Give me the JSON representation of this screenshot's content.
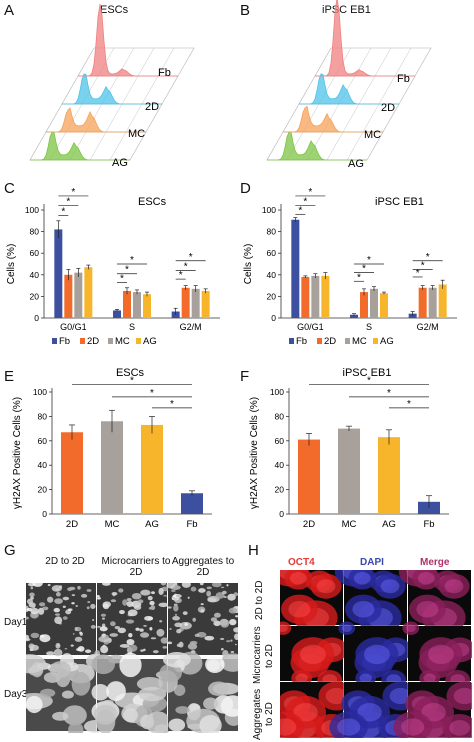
{
  "panels": {
    "A": {
      "letter": "A",
      "title": "ESCs",
      "labels": [
        "Fb",
        "2D",
        "MC",
        "AG"
      ]
    },
    "B": {
      "letter": "B",
      "title": "iPSC EB1",
      "labels": [
        "Fb",
        "2D",
        "MC",
        "AG"
      ]
    },
    "C": {
      "letter": "C",
      "title": "ESCs"
    },
    "D": {
      "letter": "D",
      "title": "iPSC EB1"
    },
    "E": {
      "letter": "E",
      "title": "ESCs"
    },
    "F": {
      "letter": "F",
      "title": "iPSC EB1"
    },
    "G": {
      "letter": "G",
      "cols": [
        "2D to 2D",
        "Microcarriers to 2D",
        "Aggregates to 2D"
      ],
      "rows": [
        "Day1",
        "Day3"
      ]
    },
    "H": {
      "letter": "H",
      "cols": [
        "OCT4",
        "DAPI",
        "Merge"
      ],
      "rows": [
        "2D to 2D",
        "Microcarriers to 2D",
        "Aggregates to 2D"
      ]
    }
  },
  "colors": {
    "Fb": "#3d4f9f",
    "2D": "#f26b2a",
    "MC": "#a8a09a",
    "AG": "#f7b52c",
    "hist_Fb": "#f08080",
    "hist_2D": "#4fc3e8",
    "hist_MC": "#f5a25a",
    "hist_AG": "#7cc444"
  },
  "sig": "*",
  "chart_data": [
    {
      "panel": "C",
      "type": "bar",
      "title": "ESCs",
      "ylabel": "Cells (%)",
      "ylim": [
        0,
        100
      ],
      "yticks": [
        0,
        20,
        40,
        60,
        80,
        100
      ],
      "categories": [
        "G0/G1",
        "S",
        "G2/M"
      ],
      "series": [
        {
          "name": "Fb",
          "values": [
            82,
            7,
            6
          ],
          "errors": [
            8,
            1,
            3
          ]
        },
        {
          "name": "2D",
          "values": [
            40,
            25,
            28
          ],
          "errors": [
            5,
            3,
            2
          ]
        },
        {
          "name": "MC",
          "values": [
            42,
            24,
            27
          ],
          "errors": [
            4,
            2,
            3
          ]
        },
        {
          "name": "AG",
          "values": [
            47,
            22,
            25
          ],
          "errors": [
            2,
            2,
            2
          ]
        }
      ],
      "legend": [
        "Fb",
        "2D",
        "MC",
        "AG"
      ]
    },
    {
      "panel": "D",
      "type": "bar",
      "title": "iPSC EB1",
      "ylabel": "Cells (%)",
      "ylim": [
        0,
        100
      ],
      "yticks": [
        0,
        20,
        40,
        60,
        80,
        100
      ],
      "categories": [
        "G0/G1",
        "S",
        "G2/M"
      ],
      "series": [
        {
          "name": "Fb",
          "values": [
            91,
            3,
            4
          ],
          "errors": [
            2,
            1,
            2
          ]
        },
        {
          "name": "2D",
          "values": [
            38,
            24,
            28
          ],
          "errors": [
            1,
            3,
            2
          ]
        },
        {
          "name": "MC",
          "values": [
            39,
            27,
            28
          ],
          "errors": [
            2,
            2,
            2
          ]
        },
        {
          "name": "AG",
          "values": [
            39,
            23,
            31
          ],
          "errors": [
            3,
            1,
            4
          ]
        }
      ],
      "legend": [
        "Fb",
        "2D",
        "MC",
        "AG"
      ]
    },
    {
      "panel": "E",
      "type": "bar",
      "title": "ESCs",
      "ylabel": "γH2AX Positive Cells (%)",
      "ylim": [
        0,
        100
      ],
      "yticks": [
        0,
        20,
        40,
        60,
        80,
        100
      ],
      "categories": [
        "2D",
        "MC",
        "AG",
        "Fb"
      ],
      "values": [
        67,
        76,
        73,
        17
      ],
      "errors": [
        6,
        9,
        7,
        2
      ]
    },
    {
      "panel": "F",
      "type": "bar",
      "title": "iPSC EB1",
      "ylabel": "γH2AX Positive Cells (%)",
      "ylim": [
        0,
        100
      ],
      "yticks": [
        0,
        20,
        40,
        60,
        80,
        100
      ],
      "categories": [
        "2D",
        "MC",
        "AG",
        "Fb"
      ],
      "values": [
        61,
        70,
        63,
        10
      ],
      "errors": [
        5,
        2,
        6,
        5
      ]
    }
  ]
}
